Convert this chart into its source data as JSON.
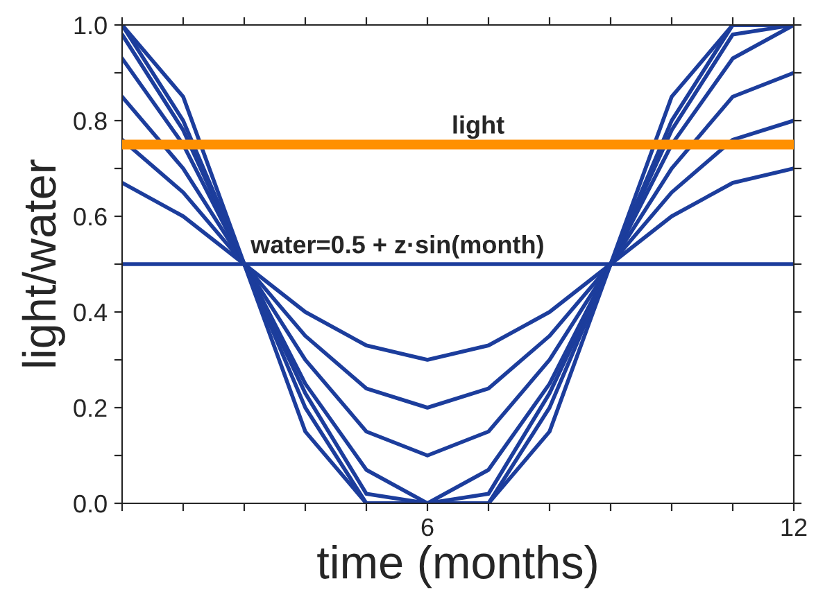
{
  "chart_data": {
    "type": "line",
    "xlabel": "time (months)",
    "ylabel": "light/water",
    "x": [
      1,
      2,
      3,
      4,
      5,
      6,
      7,
      8,
      9,
      10,
      11,
      12
    ],
    "series": [
      {
        "color": "#1c3d9c",
        "values": [
          0.67,
          0.6,
          0.5,
          0.4,
          0.33,
          0.3,
          0.33,
          0.4,
          0.5,
          0.6,
          0.67,
          0.7
        ]
      },
      {
        "color": "#1c3d9c",
        "values": [
          0.76,
          0.65,
          0.5,
          0.35,
          0.24,
          0.2,
          0.24,
          0.35,
          0.5,
          0.65,
          0.76,
          0.8
        ]
      },
      {
        "color": "#1c3d9c",
        "values": [
          0.85,
          0.7,
          0.5,
          0.3,
          0.15,
          0.1,
          0.15,
          0.3,
          0.5,
          0.7,
          0.85,
          0.9
        ]
      },
      {
        "color": "#1c3d9c",
        "values": [
          0.93,
          0.75,
          0.5,
          0.25,
          0.07,
          0,
          0.07,
          0.25,
          0.5,
          0.75,
          0.93,
          1.0
        ]
      },
      {
        "color": "#1c3d9c",
        "values": [
          0.98,
          0.78,
          0.5,
          0.23,
          0.02,
          0,
          0.02,
          0.23,
          0.5,
          0.78,
          0.98,
          1.0
        ]
      },
      {
        "color": "#1c3d9c",
        "values": [
          1.0,
          0.8,
          0.5,
          0.2,
          0,
          0,
          0,
          0.2,
          0.5,
          0.8,
          1.0,
          1.0
        ]
      },
      {
        "color": "#1c3d9c",
        "values": [
          1.0,
          0.85,
          0.5,
          0.15,
          0,
          0,
          0,
          0.15,
          0.5,
          0.85,
          1.0,
          1.0
        ]
      }
    ],
    "ref_lines": [
      {
        "axis": "y",
        "value": 0.75,
        "label": "light",
        "color": "#ff9000"
      },
      {
        "axis": "y",
        "value": 0.5,
        "label": "water=0.5 + z·sin(month)",
        "color": "#1c3d9c"
      }
    ],
    "xlim": [
      1,
      12
    ],
    "xticks": [
      {
        "value": 1,
        "label": null
      },
      {
        "value": 2,
        "label": null
      },
      {
        "value": 3,
        "label": null
      },
      {
        "value": 4,
        "label": null
      },
      {
        "value": 5,
        "label": null
      },
      6,
      {
        "value": 7,
        "label": null
      },
      {
        "value": 8,
        "label": null
      },
      {
        "value": 9,
        "label": null
      },
      {
        "value": 10,
        "label": null
      },
      {
        "value": 11,
        "label": null
      },
      12
    ],
    "ylim": [
      0,
      1.0
    ],
    "yticks": [
      "0.0",
      {
        "value": 0.1,
        "label": null
      },
      {
        "value": 0.2,
        "label": "0.2"
      },
      {
        "value": 0.3,
        "label": null
      },
      {
        "value": 0.4,
        "label": "0.4"
      },
      {
        "value": 0.5,
        "label": null
      },
      {
        "value": 0.6,
        "label": "0.6"
      },
      {
        "value": 0.7,
        "label": null
      },
      {
        "value": 0.8,
        "label": "0.8"
      },
      {
        "value": 0.9,
        "label": null
      },
      {
        "value": 1.0,
        "label": "1.0"
      }
    ],
    "grid": false,
    "legend": false,
    "marker": "none",
    "line_style": "solid"
  }
}
